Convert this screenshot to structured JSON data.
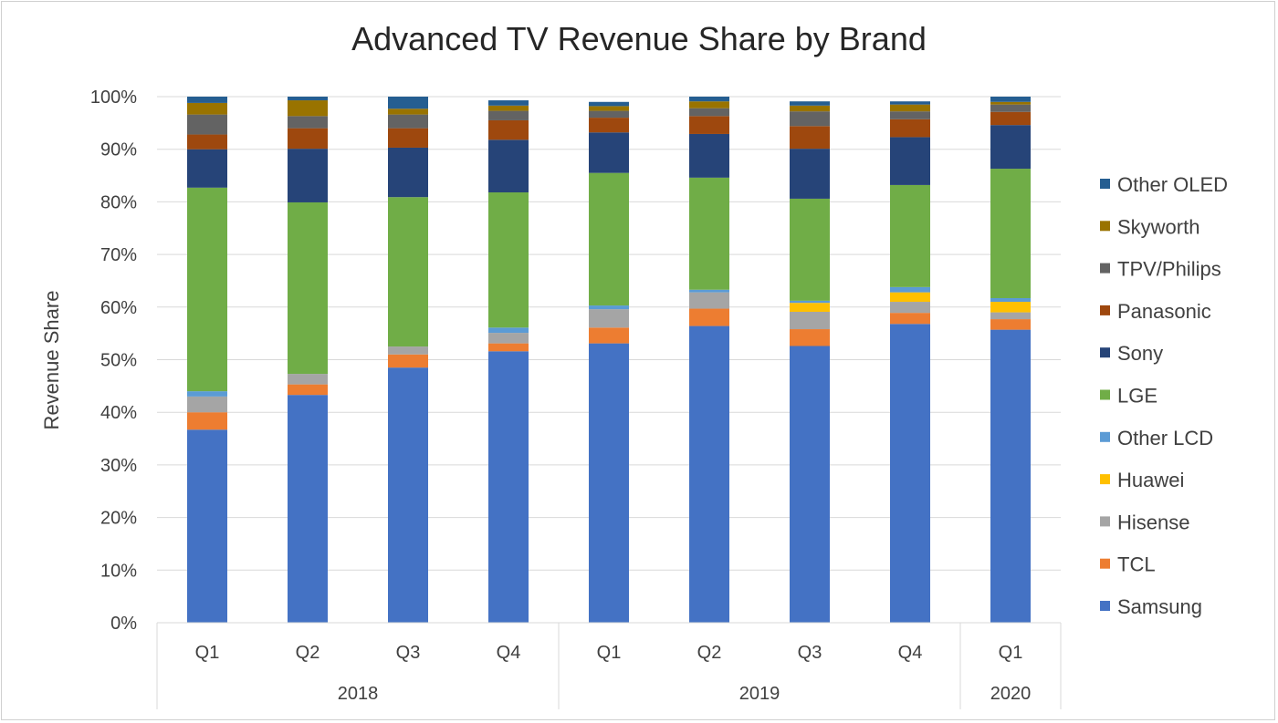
{
  "colors": {
    "Samsung": "#4472c4",
    "TCL": "#ed7d31",
    "Hisense": "#a5a5a5",
    "Huawei": "#ffc000",
    "Other LCD": "#5b9bd5",
    "LGE": "#70ad47",
    "Sony": "#264478",
    "Panasonic": "#9e480e",
    "TPV/Philips": "#636363",
    "Skyworth": "#997300",
    "Other OLED": "#255e91"
  },
  "chart_data": {
    "type": "bar",
    "stacked": true,
    "title": "Advanced TV Revenue Share by Brand",
    "ylabel": "Revenue Share",
    "xlabel": "",
    "ylim": [
      0,
      100
    ],
    "yticks": [
      "0%",
      "10%",
      "20%",
      "30%",
      "40%",
      "50%",
      "60%",
      "70%",
      "80%",
      "90%",
      "100%"
    ],
    "grid": true,
    "legend_position": "right",
    "categories": [
      "Q1",
      "Q2",
      "Q3",
      "Q4",
      "Q1",
      "Q2",
      "Q3",
      "Q4",
      "Q1"
    ],
    "groups": [
      {
        "label": "2018",
        "count": 4
      },
      {
        "label": "2019",
        "count": 4
      },
      {
        "label": "2020",
        "count": 1
      }
    ],
    "legend_order": [
      "Other OLED",
      "Skyworth",
      "TPV/Philips",
      "Panasonic",
      "Sony",
      "LGE",
      "Other LCD",
      "Huawei",
      "Hisense",
      "TCL",
      "Samsung"
    ],
    "series": [
      {
        "name": "Samsung",
        "values": [
          36.7,
          43.3,
          48.5,
          51.6,
          53.1,
          56.4,
          52.6,
          56.8,
          55.7
        ]
      },
      {
        "name": "TCL",
        "values": [
          3.3,
          2.0,
          2.5,
          1.5,
          3.0,
          3.3,
          3.2,
          2.1,
          2.0
        ]
      },
      {
        "name": "Hisense",
        "values": [
          3.0,
          2.0,
          1.5,
          2.0,
          3.5,
          3.1,
          3.3,
          2.1,
          1.3
        ]
      },
      {
        "name": "Huawei",
        "values": [
          0,
          0,
          0,
          0,
          0,
          0,
          1.7,
          1.8,
          2.0
        ]
      },
      {
        "name": "Other LCD",
        "values": [
          1.0,
          0,
          0,
          1.0,
          0.7,
          0.5,
          0.4,
          1.0,
          0.7
        ]
      },
      {
        "name": "LGE",
        "values": [
          38.7,
          32.6,
          28.4,
          25.7,
          25.2,
          21.3,
          19.4,
          19.4,
          24.6
        ]
      },
      {
        "name": "Sony",
        "values": [
          7.3,
          10.2,
          9.4,
          10.0,
          7.7,
          8.3,
          9.5,
          9.1,
          8.3
        ]
      },
      {
        "name": "Panasonic",
        "values": [
          2.8,
          3.9,
          3.7,
          3.7,
          2.8,
          3.4,
          4.3,
          3.4,
          2.5
        ]
      },
      {
        "name": "TPV/Philips",
        "values": [
          3.8,
          2.3,
          2.6,
          1.8,
          1.3,
          1.5,
          2.8,
          1.5,
          1.4
        ]
      },
      {
        "name": "Skyworth",
        "values": [
          2.2,
          3.0,
          1.1,
          1.0,
          0.9,
          1.3,
          1.1,
          1.3,
          0.5
        ]
      },
      {
        "name": "Other OLED",
        "values": [
          1.2,
          0.7,
          2.3,
          1.0,
          0.8,
          0.9,
          0.8,
          0.6,
          1.0
        ]
      }
    ]
  }
}
